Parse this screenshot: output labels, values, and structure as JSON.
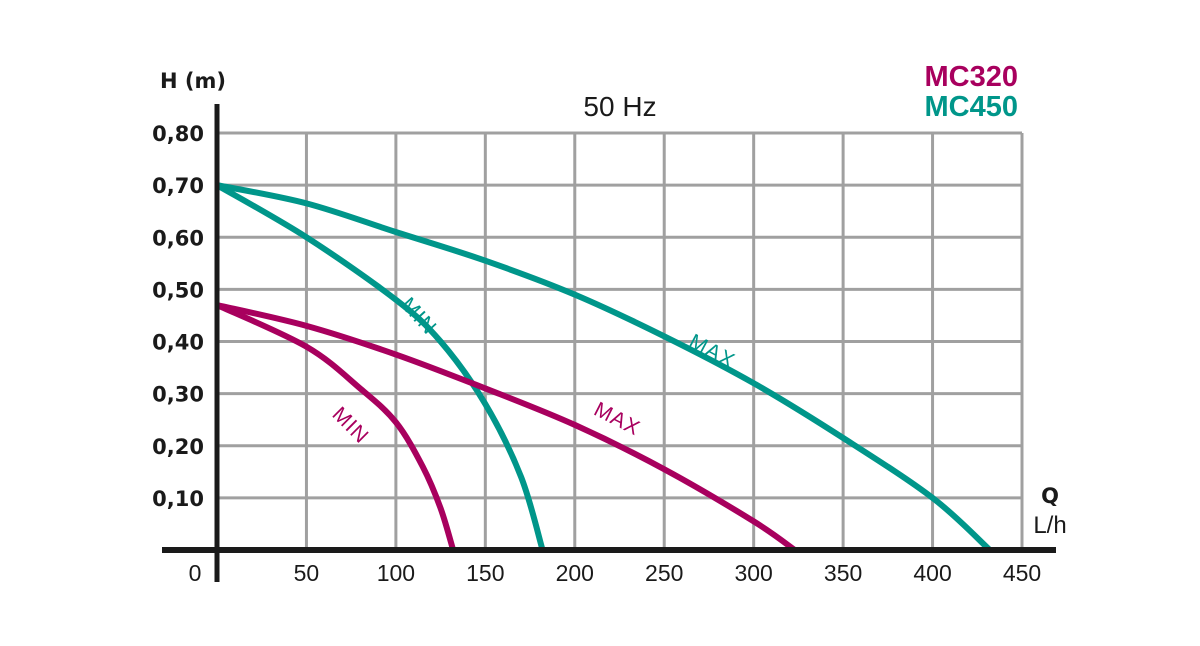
{
  "chart_data": {
    "type": "line",
    "title": "50 Hz",
    "xlabel": "Q",
    "xunit": "L/h",
    "ylabel": "H (m)",
    "xlim": [
      0,
      450
    ],
    "ylim": [
      0,
      0.8
    ],
    "grid": true,
    "x_ticks": [
      0,
      50,
      100,
      150,
      200,
      250,
      300,
      350,
      400,
      450
    ],
    "x_tick_labels": [
      "0",
      "50",
      "100",
      "150",
      "200",
      "250",
      "300",
      "350",
      "400",
      "450"
    ],
    "y_ticks": [
      0.1,
      0.2,
      0.3,
      0.4,
      0.5,
      0.6,
      0.7,
      0.8
    ],
    "y_tick_labels": [
      "0,10",
      "0,20",
      "0,30",
      "0,40",
      "0,50",
      "0,60",
      "0,70",
      "0,80"
    ],
    "legend": {
      "placement": "top-right",
      "entries": [
        {
          "label": "MC320",
          "color": "#a8005e"
        },
        {
          "label": "MC450",
          "color": "#00968a"
        }
      ]
    },
    "series": [
      {
        "name": "MC450 MAX",
        "model": "MC450",
        "label": "MAX",
        "color": "#00968a",
        "x": [
          0,
          50,
          100,
          150,
          200,
          250,
          300,
          350,
          400,
          432
        ],
        "y": [
          0.7,
          0.665,
          0.61,
          0.555,
          0.49,
          0.41,
          0.32,
          0.215,
          0.1,
          0.0
        ]
      },
      {
        "name": "MC450 MIN",
        "model": "MC450",
        "label": "MIN",
        "color": "#00968a",
        "x": [
          0,
          50,
          100,
          125,
          150,
          170,
          182
        ],
        "y": [
          0.7,
          0.6,
          0.48,
          0.4,
          0.28,
          0.14,
          0.0
        ]
      },
      {
        "name": "MC320 MAX",
        "model": "MC320",
        "label": "MAX",
        "color": "#a8005e",
        "x": [
          0,
          50,
          100,
          150,
          200,
          250,
          300,
          323
        ],
        "y": [
          0.47,
          0.43,
          0.375,
          0.31,
          0.24,
          0.155,
          0.055,
          0.0
        ]
      },
      {
        "name": "MC320 MIN",
        "model": "MC320",
        "label": "MIN",
        "color": "#a8005e",
        "x": [
          0,
          50,
          80,
          100,
          115,
          125,
          132
        ],
        "y": [
          0.47,
          0.39,
          0.31,
          0.245,
          0.16,
          0.08,
          0.0
        ]
      }
    ],
    "annotations": [
      {
        "text": "MAX",
        "series": "MC450 MAX",
        "at_x": 275,
        "at_y": 0.37
      },
      {
        "text": "MIN",
        "series": "MC450 MIN",
        "at_x": 110,
        "at_y": 0.44
      },
      {
        "text": "MAX",
        "series": "MC320 MAX",
        "at_x": 222,
        "at_y": 0.24
      },
      {
        "text": "MIN",
        "series": "MC320 MIN",
        "at_x": 72,
        "at_y": 0.23
      }
    ]
  },
  "colors": {
    "axis": "#1a1a1a",
    "grid": "#a0a0a0",
    "mc320": "#a8005e",
    "mc450": "#00968a"
  }
}
